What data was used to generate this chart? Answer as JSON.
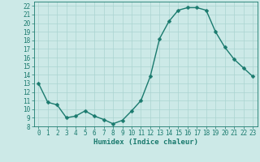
{
  "x": [
    0,
    1,
    2,
    3,
    4,
    5,
    6,
    7,
    8,
    9,
    10,
    11,
    12,
    13,
    14,
    15,
    16,
    17,
    18,
    19,
    20,
    21,
    22,
    23
  ],
  "y": [
    13.0,
    10.8,
    10.5,
    9.0,
    9.2,
    9.8,
    9.2,
    8.8,
    8.3,
    8.7,
    9.8,
    11.0,
    13.8,
    18.2,
    20.2,
    21.5,
    21.8,
    21.8,
    21.5,
    19.0,
    17.2,
    15.8,
    14.8,
    13.8
  ],
  "line_color": "#1a7a6e",
  "marker": "D",
  "marker_size": 2.5,
  "bg_color": "#cce9e7",
  "grid_color": "#aad4d1",
  "xlabel": "Humidex (Indice chaleur)",
  "xlim": [
    -0.5,
    23.5
  ],
  "ylim": [
    8,
    22.5
  ],
  "yticks": [
    8,
    9,
    10,
    11,
    12,
    13,
    14,
    15,
    16,
    17,
    18,
    19,
    20,
    21,
    22
  ],
  "xticks": [
    0,
    1,
    2,
    3,
    4,
    5,
    6,
    7,
    8,
    9,
    10,
    11,
    12,
    13,
    14,
    15,
    16,
    17,
    18,
    19,
    20,
    21,
    22,
    23
  ],
  "tick_fontsize": 5.5,
  "label_fontsize": 6.5,
  "line_width": 1.0
}
